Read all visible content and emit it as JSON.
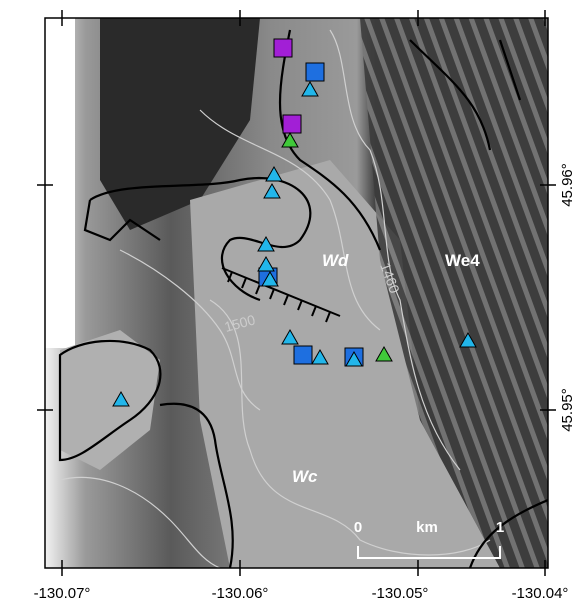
{
  "map": {
    "x_tick_labels": [
      "-130.07°",
      "-130.06°",
      "-130.05°",
      "-130.04°"
    ],
    "y_tick_labels": [
      "45.96°",
      "45.95°"
    ],
    "unit_labels": [
      "Wd",
      "We4",
      "Wc"
    ],
    "contour_labels": [
      "1460",
      "1500"
    ],
    "scale_bar": {
      "start": "0",
      "unit": "km",
      "end": "1"
    }
  }
}
